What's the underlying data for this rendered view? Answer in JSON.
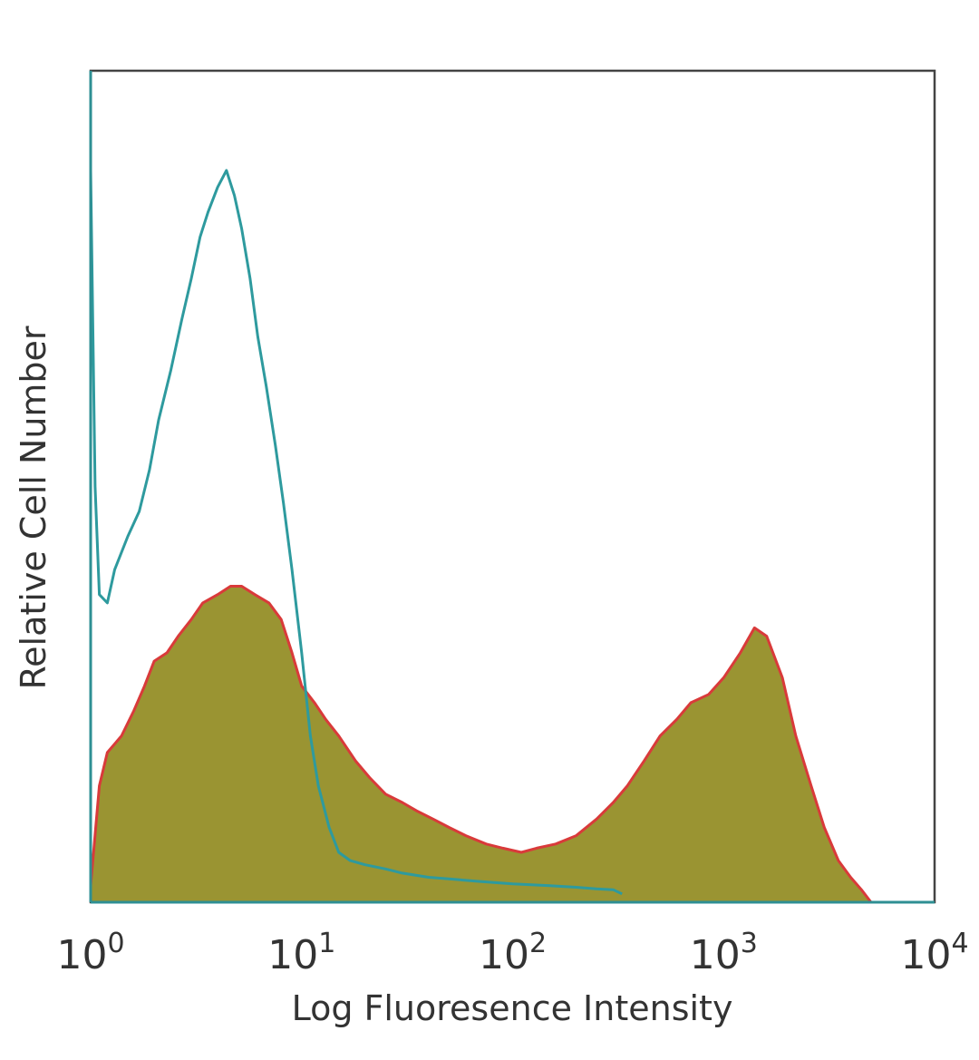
{
  "chart_data": {
    "type": "area",
    "xlabel": "Log Fluoresence Intensity",
    "ylabel": "Relative Cell Number",
    "x_scale": "log",
    "xlim": [
      1,
      10000
    ],
    "ylim": [
      0,
      100
    ],
    "x_ticks": [
      {
        "base": "10",
        "exp": "0",
        "value": 1
      },
      {
        "base": "10",
        "exp": "1",
        "value": 10
      },
      {
        "base": "10",
        "exp": "2",
        "value": 100
      },
      {
        "base": "10",
        "exp": "3",
        "value": 1000
      },
      {
        "base": "10",
        "exp": "4",
        "value": 10000
      }
    ],
    "grid": false,
    "series": [
      {
        "style": "filled",
        "fill_color": "#9a9432",
        "line_color": "#d93a3a",
        "x": [
          1,
          1.1,
          1.2,
          1.4,
          1.6,
          1.8,
          2,
          2.3,
          2.6,
          3,
          3.4,
          4,
          4.6,
          5.2,
          6,
          7,
          8,
          9,
          10,
          11.5,
          13,
          15,
          18,
          21,
          25,
          30,
          35,
          42,
          50,
          60,
          75,
          90,
          110,
          130,
          160,
          200,
          250,
          300,
          350,
          420,
          500,
          600,
          700,
          850,
          1000,
          1200,
          1400,
          1600,
          1900,
          2200,
          2600,
          3000,
          3500,
          4000,
          4500,
          5000
        ],
        "y": [
          2,
          14,
          18,
          20,
          23,
          26,
          29,
          30,
          32,
          34,
          36,
          37,
          38,
          38,
          37,
          36,
          34,
          30,
          26,
          24,
          22,
          20,
          17,
          15,
          13,
          12,
          11,
          10,
          9,
          8,
          7,
          6.5,
          6,
          6.5,
          7,
          8,
          10,
          12,
          14,
          17,
          20,
          22,
          24,
          25,
          27,
          30,
          33,
          32,
          27,
          20,
          14,
          9,
          5,
          3,
          1.5,
          0
        ]
      },
      {
        "style": "line",
        "line_color": "#2e9a9e",
        "x": [
          1,
          1.05,
          1.1,
          1.2,
          1.3,
          1.5,
          1.7,
          1.9,
          2.1,
          2.4,
          2.7,
          3,
          3.3,
          3.6,
          4,
          4.4,
          4.8,
          5.2,
          5.7,
          6.2,
          6.8,
          7.5,
          8.2,
          9,
          10,
          11,
          12,
          13.5,
          15,
          17,
          20,
          25,
          30,
          40,
          50,
          70,
          100,
          150,
          200,
          250,
          300,
          330
        ],
        "y": [
          88,
          50,
          37,
          36,
          40,
          44,
          47,
          52,
          58,
          64,
          70,
          75,
          80,
          83,
          86,
          88,
          85,
          81,
          75,
          68,
          62,
          55,
          48,
          40,
          30,
          20,
          14,
          9,
          6,
          5,
          4.5,
          4,
          3.5,
          3,
          2.8,
          2.5,
          2.2,
          2,
          1.8,
          1.6,
          1.5,
          1
        ]
      }
    ]
  }
}
